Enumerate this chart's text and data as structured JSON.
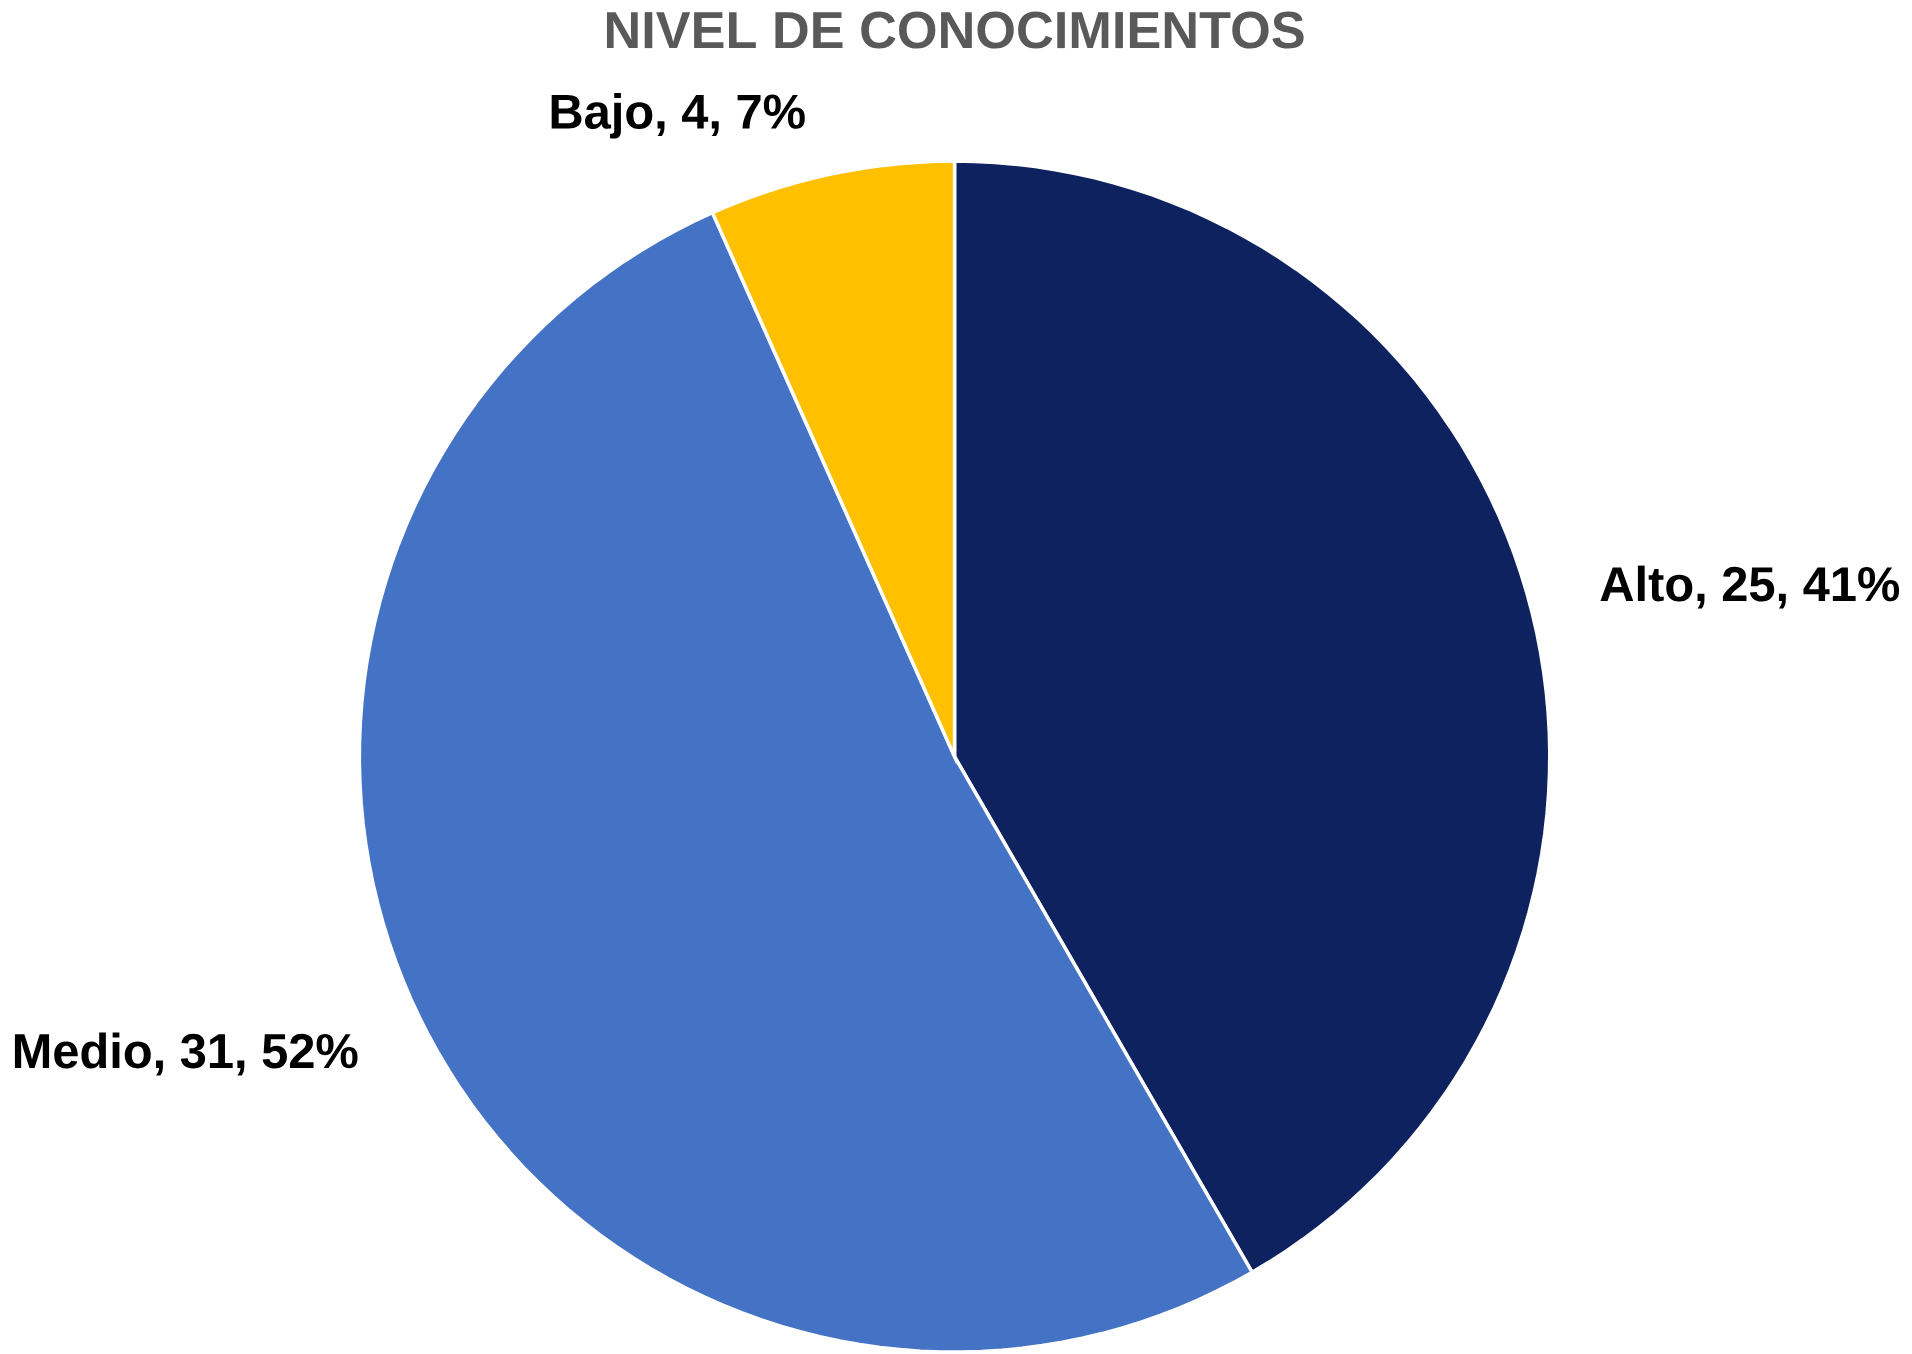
{
  "chart_data": {
    "type": "pie",
    "title": "NIVEL DE CONOCIMIENTOS",
    "categories": [
      "Alto",
      "Medio",
      "Bajo"
    ],
    "values": [
      25,
      31,
      4
    ],
    "value_labels": [
      ", 25, 41%",
      ", 31, 52%",
      ", 4, 7%"
    ],
    "colors": [
      "#0e2260",
      "#4472c4",
      "#ffc000"
    ]
  }
}
